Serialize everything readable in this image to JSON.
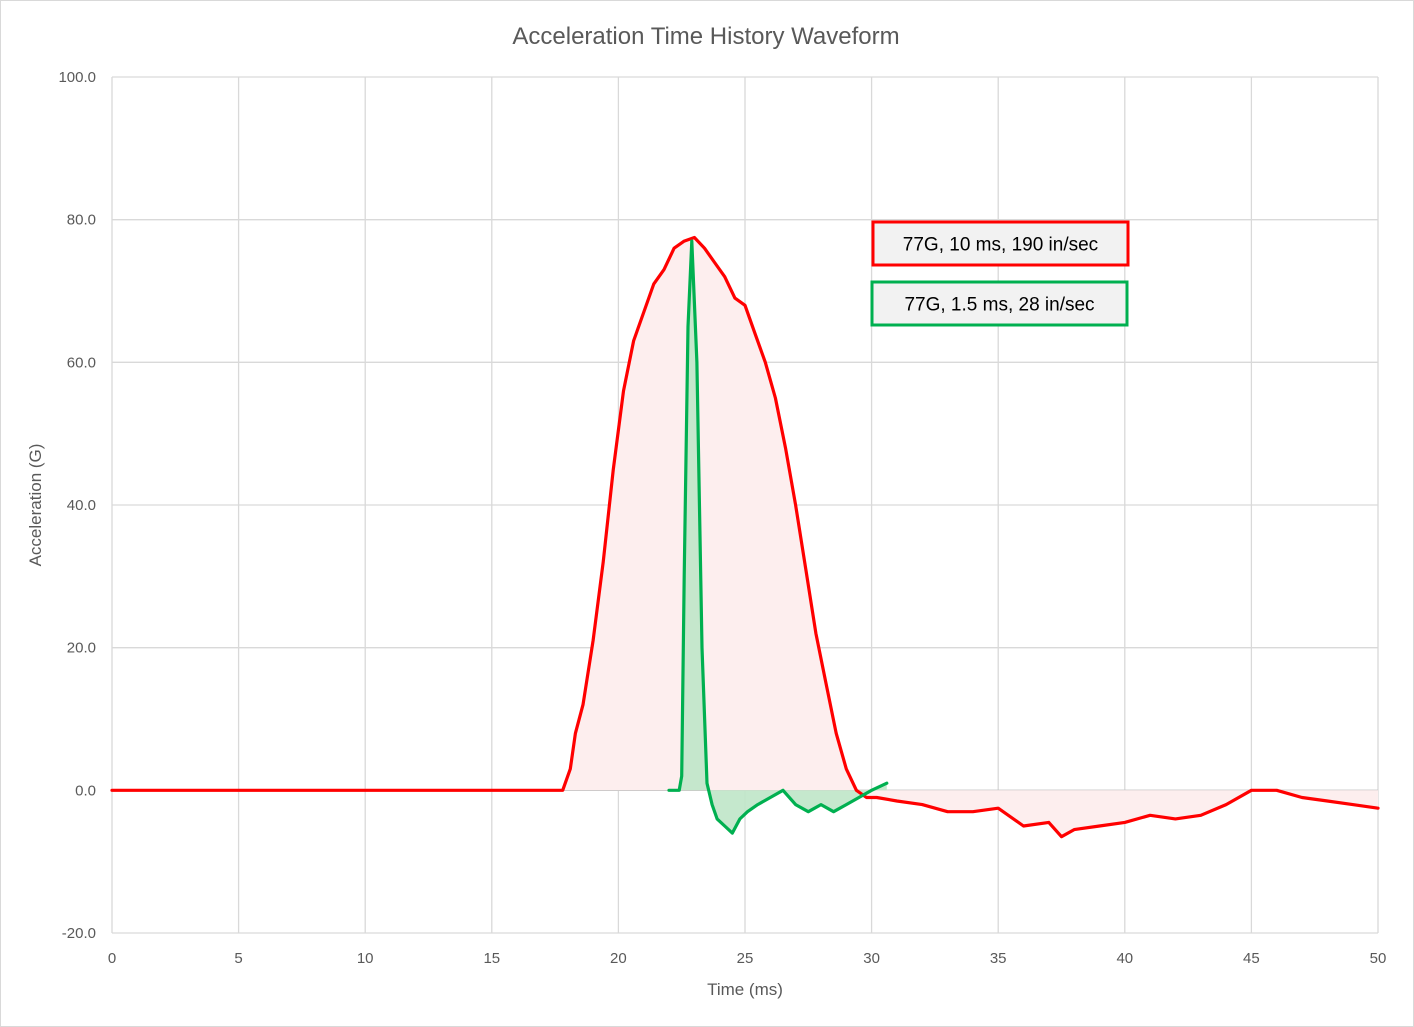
{
  "chart_data": {
    "type": "area",
    "title": "Acceleration Time History Waveform",
    "xlabel": "Time (ms)",
    "ylabel": "Acceleration (G)",
    "xlim": [
      0,
      50
    ],
    "ylim": [
      -20,
      100
    ],
    "x_ticks": [
      "0",
      "5",
      "10",
      "15",
      "20",
      "25",
      "30",
      "35",
      "40",
      "45",
      "50"
    ],
    "y_ticks": [
      "100.0",
      "80.0",
      "60.0",
      "40.0",
      "20.0",
      "0.0",
      "-20.0"
    ],
    "grid": true,
    "series": [
      {
        "color": "#ff0000",
        "fill": "#fdeeee",
        "x": [
          0,
          1,
          2,
          3,
          4,
          5,
          6,
          7,
          8,
          9,
          10,
          11,
          12,
          13,
          14,
          15,
          16,
          17,
          17.8,
          18.1,
          18.3,
          18.6,
          19.0,
          19.4,
          19.8,
          20.2,
          20.6,
          21.0,
          21.4,
          21.8,
          22.2,
          22.6,
          23.0,
          23.4,
          23.8,
          24.2,
          24.6,
          25.0,
          25.4,
          25.8,
          26.2,
          26.6,
          27.0,
          27.4,
          27.8,
          28.2,
          28.6,
          29.0,
          29.4,
          29.8,
          30.2,
          31,
          32,
          33,
          34,
          35,
          36,
          37,
          37.5,
          38,
          39,
          40,
          41,
          42,
          43,
          44,
          45,
          46,
          47,
          48,
          49,
          50
        ],
        "y": [
          0,
          0,
          0,
          0,
          0,
          0,
          0,
          0,
          0,
          0,
          0,
          0,
          0,
          0,
          0,
          0,
          0,
          0,
          0,
          3,
          8,
          12,
          21,
          32,
          45,
          56,
          63,
          67,
          71,
          73,
          76,
          77,
          77.5,
          76,
          74,
          72,
          69,
          68,
          64,
          60,
          55,
          48,
          40,
          31,
          22,
          15,
          8,
          3,
          0,
          -1,
          -1,
          -1.5,
          -2,
          -3,
          -3,
          -2.5,
          -5,
          -4.5,
          -6.5,
          -5.5,
          -5,
          -4.5,
          -3.5,
          -4,
          -3.5,
          -2,
          0,
          0,
          -1,
          -1.5,
          -2,
          -2.5
        ]
      },
      {
        "color": "#00b050",
        "fill": "#bfe5c8",
        "x": [
          22.0,
          22.4,
          22.5,
          22.6,
          22.75,
          22.9,
          23.1,
          23.3,
          23.5,
          23.7,
          23.9,
          24.2,
          24.5,
          24.8,
          25.1,
          25.5,
          26.0,
          26.5,
          27.0,
          27.5,
          28.0,
          28.5,
          29.0,
          29.5,
          30.0,
          30.6
        ],
        "y": [
          0,
          0,
          2,
          30,
          65,
          77,
          60,
          20,
          1,
          -2,
          -4,
          -5,
          -6,
          -4,
          -3,
          -2,
          -1,
          0,
          -2,
          -3,
          -2,
          -3,
          -2,
          -1,
          0,
          1
        ]
      }
    ],
    "annotations": [
      {
        "text": "77G, 10 ms, 190 in/sec",
        "color": "#ff0000"
      },
      {
        "text": "77G, 1.5 ms, 28 in/sec",
        "color": "#00b050"
      }
    ]
  }
}
